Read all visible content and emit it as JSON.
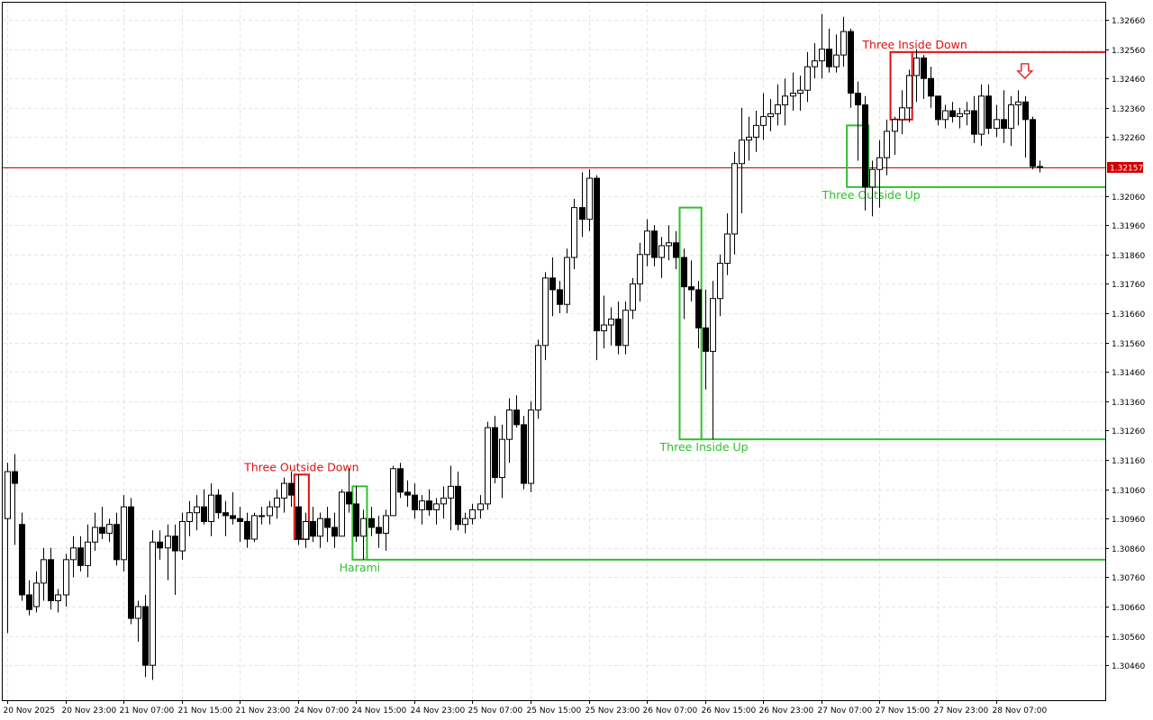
{
  "chart_data": {
    "type": "candlestick",
    "colors": {
      "background": "#ffffff",
      "grid": "#e6e6e6",
      "candle_border": "#000000",
      "bull_body": "#ffffff",
      "bear_body": "#000000",
      "bid_line": "#d00000",
      "pattern_bullish": "#2fc02f",
      "pattern_bearish": "#e01010"
    },
    "y_axis": {
      "side": "right",
      "ylim": [
        1.3039,
        1.3273
      ],
      "ticks": [
        "1.32660",
        "1.32560",
        "1.32460",
        "1.32360",
        "1.32260",
        "1.32060",
        "1.31960",
        "1.31860",
        "1.31760",
        "1.31660",
        "1.31560",
        "1.31460",
        "1.31360",
        "1.31260",
        "1.31160",
        "1.31060",
        "1.30960",
        "1.30860",
        "1.30760",
        "1.30660",
        "1.30560",
        "1.30460"
      ]
    },
    "x_axis": {
      "bar_count": 152,
      "labels": [
        {
          "bar": 0,
          "text": "20 Nov 2025"
        },
        {
          "bar": 8,
          "text": "20 Nov 23:00"
        },
        {
          "bar": 16,
          "text": "21 Nov 07:00"
        },
        {
          "bar": 24,
          "text": "21 Nov 15:00"
        },
        {
          "bar": 32,
          "text": "21 Nov 23:00"
        },
        {
          "bar": 40,
          "text": "24 Nov 07:00"
        },
        {
          "bar": 48,
          "text": "24 Nov 15:00"
        },
        {
          "bar": 56,
          "text": "24 Nov 23:00"
        },
        {
          "bar": 64,
          "text": "25 Nov 07:00"
        },
        {
          "bar": 72,
          "text": "25 Nov 15:00"
        },
        {
          "bar": 80,
          "text": "25 Nov 23:00"
        },
        {
          "bar": 88,
          "text": "26 Nov 07:00"
        },
        {
          "bar": 96,
          "text": "26 Nov 15:00"
        },
        {
          "bar": 104,
          "text": "26 Nov 23:00"
        },
        {
          "bar": 112,
          "text": "27 Nov 07:00"
        },
        {
          "bar": 120,
          "text": "27 Nov 15:00"
        },
        {
          "bar": 128,
          "text": "27 Nov 23:00"
        },
        {
          "bar": 136,
          "text": "28 Nov 07:00"
        }
      ]
    },
    "current_price": {
      "value": 1.32157,
      "label": "1.32157"
    },
    "ohlc": [
      [
        1.3096,
        1.3115,
        1.3057,
        1.3112
      ],
      [
        1.3112,
        1.3118,
        1.3087,
        1.3108
      ],
      [
        1.3094,
        1.3098,
        1.3068,
        1.307
      ],
      [
        1.307,
        1.3075,
        1.3063,
        1.3065
      ],
      [
        1.3066,
        1.3078,
        1.3064,
        1.3074
      ],
      [
        1.3074,
        1.3086,
        1.3068,
        1.3082
      ],
      [
        1.3082,
        1.3086,
        1.3065,
        1.3068
      ],
      [
        1.3068,
        1.3072,
        1.3064,
        1.307
      ],
      [
        1.307,
        1.3084,
        1.3066,
        1.3082
      ],
      [
        1.3082,
        1.309,
        1.3076,
        1.3086
      ],
      [
        1.3086,
        1.309,
        1.3078,
        1.308
      ],
      [
        1.308,
        1.3094,
        1.3076,
        1.3088
      ],
      [
        1.3088,
        1.3098,
        1.3085,
        1.3093
      ],
      [
        1.3093,
        1.31,
        1.3089,
        1.3091
      ],
      [
        1.3091,
        1.3096,
        1.3088,
        1.3094
      ],
      [
        1.3094,
        1.3098,
        1.308,
        1.3082
      ],
      [
        1.3082,
        1.3104,
        1.3078,
        1.31
      ],
      [
        1.31,
        1.3103,
        1.306,
        1.3062
      ],
      [
        1.3062,
        1.3068,
        1.3054,
        1.3066
      ],
      [
        1.3066,
        1.307,
        1.3042,
        1.3046
      ],
      [
        1.3046,
        1.3092,
        1.3041,
        1.3088
      ],
      [
        1.3088,
        1.3092,
        1.3082,
        1.3086
      ],
      [
        1.3086,
        1.3094,
        1.3075,
        1.309
      ],
      [
        1.309,
        1.3094,
        1.307,
        1.3085
      ],
      [
        1.3085,
        1.3098,
        1.3082,
        1.3095
      ],
      [
        1.3095,
        1.3102,
        1.309,
        1.3098
      ],
      [
        1.3098,
        1.3104,
        1.3092,
        1.31
      ],
      [
        1.31,
        1.3106,
        1.3094,
        1.3095
      ],
      [
        1.3095,
        1.3108,
        1.309,
        1.3104
      ],
      [
        1.3104,
        1.3106,
        1.3096,
        1.3098
      ],
      [
        1.3098,
        1.3102,
        1.309,
        1.3097
      ],
      [
        1.3097,
        1.3105,
        1.3094,
        1.3096
      ],
      [
        1.3096,
        1.31,
        1.3088,
        1.3095
      ],
      [
        1.3095,
        1.3098,
        1.3086,
        1.3089
      ],
      [
        1.3089,
        1.3098,
        1.3088,
        1.3097
      ],
      [
        1.3097,
        1.31,
        1.3094,
        1.3097
      ],
      [
        1.3097,
        1.3102,
        1.3094,
        1.31
      ],
      [
        1.31,
        1.3106,
        1.3096,
        1.3103
      ],
      [
        1.3103,
        1.311,
        1.3098,
        1.3108
      ],
      [
        1.3108,
        1.3112,
        1.31,
        1.3104
      ],
      [
        1.31,
        1.3111,
        1.3087,
        1.3089
      ],
      [
        1.3089,
        1.3098,
        1.3086,
        1.3095
      ],
      [
        1.3095,
        1.31,
        1.3088,
        1.309
      ],
      [
        1.309,
        1.3098,
        1.3086,
        1.3096
      ],
      [
        1.3096,
        1.31,
        1.3088,
        1.3093
      ],
      [
        1.3093,
        1.3098,
        1.3086,
        1.309
      ],
      [
        1.309,
        1.3106,
        1.309,
        1.3105
      ],
      [
        1.3105,
        1.3113,
        1.3098,
        1.3101
      ],
      [
        1.3101,
        1.3107,
        1.3088,
        1.309
      ],
      [
        1.309,
        1.3099,
        1.3082,
        1.3096
      ],
      [
        1.3096,
        1.31,
        1.309,
        1.3093
      ],
      [
        1.3093,
        1.3097,
        1.3086,
        1.3091
      ],
      [
        1.3091,
        1.3099,
        1.3085,
        1.3097
      ],
      [
        1.3097,
        1.3114,
        1.3097,
        1.3113
      ],
      [
        1.3113,
        1.3115,
        1.3103,
        1.3105
      ],
      [
        1.3105,
        1.3109,
        1.31,
        1.3104
      ],
      [
        1.3104,
        1.3108,
        1.3096,
        1.3099
      ],
      [
        1.3099,
        1.3104,
        1.3094,
        1.3102
      ],
      [
        1.3102,
        1.3106,
        1.3097,
        1.3099
      ],
      [
        1.3099,
        1.3103,
        1.3094,
        1.3101
      ],
      [
        1.3101,
        1.3107,
        1.3096,
        1.3103
      ],
      [
        1.3103,
        1.3114,
        1.3092,
        1.3107
      ],
      [
        1.3107,
        1.3112,
        1.3092,
        1.3094
      ],
      [
        1.3094,
        1.3098,
        1.3091,
        1.3096
      ],
      [
        1.3096,
        1.3101,
        1.3094,
        1.3099
      ],
      [
        1.3099,
        1.3104,
        1.3096,
        1.3101
      ],
      [
        1.3101,
        1.3129,
        1.3099,
        1.3127
      ],
      [
        1.3127,
        1.3131,
        1.3108,
        1.311
      ],
      [
        1.311,
        1.3128,
        1.3103,
        1.3123
      ],
      [
        1.3123,
        1.3137,
        1.3115,
        1.3133
      ],
      [
        1.3133,
        1.3138,
        1.3127,
        1.3128
      ],
      [
        1.3128,
        1.3131,
        1.3106,
        1.3108
      ],
      [
        1.3108,
        1.3136,
        1.3105,
        1.3133
      ],
      [
        1.3133,
        1.3157,
        1.313,
        1.3155
      ],
      [
        1.3155,
        1.318,
        1.315,
        1.3178
      ],
      [
        1.3178,
        1.3185,
        1.3165,
        1.3174
      ],
      [
        1.3174,
        1.3177,
        1.3166,
        1.3169
      ],
      [
        1.3169,
        1.3188,
        1.3166,
        1.3185
      ],
      [
        1.3185,
        1.3205,
        1.3181,
        1.3202
      ],
      [
        1.3202,
        1.3214,
        1.3192,
        1.3198
      ],
      [
        1.3198,
        1.3215,
        1.3194,
        1.3212
      ],
      [
        1.3212,
        1.3213,
        1.315,
        1.316
      ],
      [
        1.316,
        1.3172,
        1.3154,
        1.3162
      ],
      [
        1.3162,
        1.3168,
        1.3155,
        1.3164
      ],
      [
        1.3164,
        1.317,
        1.3152,
        1.3155
      ],
      [
        1.3155,
        1.317,
        1.3152,
        1.3167
      ],
      [
        1.3167,
        1.3178,
        1.3164,
        1.3176
      ],
      [
        1.3176,
        1.319,
        1.317,
        1.3186
      ],
      [
        1.3186,
        1.3198,
        1.3182,
        1.3194
      ],
      [
        1.3194,
        1.3196,
        1.3182,
        1.3185
      ],
      [
        1.3185,
        1.3192,
        1.3178,
        1.3189
      ],
      [
        1.3189,
        1.3196,
        1.3184,
        1.319
      ],
      [
        1.319,
        1.3194,
        1.3181,
        1.3185
      ],
      [
        1.3185,
        1.3188,
        1.3164,
        1.3175
      ],
      [
        1.3175,
        1.3184,
        1.317,
        1.3174
      ],
      [
        1.3174,
        1.3177,
        1.3154,
        1.3161
      ],
      [
        1.3161,
        1.3174,
        1.314,
        1.3153
      ],
      [
        1.3153,
        1.3177,
        1.3123,
        1.3171
      ],
      [
        1.3171,
        1.3186,
        1.3165,
        1.3183
      ],
      [
        1.3183,
        1.32,
        1.3179,
        1.3193
      ],
      [
        1.3193,
        1.3221,
        1.3186,
        1.3217
      ],
      [
        1.3217,
        1.3236,
        1.32,
        1.3225
      ],
      [
        1.3225,
        1.3233,
        1.3218,
        1.3226
      ],
      [
        1.3226,
        1.3235,
        1.3221,
        1.323
      ],
      [
        1.323,
        1.3241,
        1.3225,
        1.3233
      ],
      [
        1.3233,
        1.3239,
        1.3228,
        1.3234
      ],
      [
        1.3234,
        1.3244,
        1.323,
        1.3237
      ],
      [
        1.3237,
        1.3246,
        1.323,
        1.324
      ],
      [
        1.324,
        1.3248,
        1.3235,
        1.3241
      ],
      [
        1.3241,
        1.3247,
        1.3235,
        1.3242
      ],
      [
        1.3242,
        1.3255,
        1.3238,
        1.325
      ],
      [
        1.325,
        1.3258,
        1.3246,
        1.3252
      ],
      [
        1.3252,
        1.3268,
        1.3246,
        1.3256
      ],
      [
        1.3256,
        1.3263,
        1.3248,
        1.325
      ],
      [
        1.325,
        1.3261,
        1.3248,
        1.3254
      ],
      [
        1.3254,
        1.3267,
        1.325,
        1.3262
      ],
      [
        1.3262,
        1.3263,
        1.3236,
        1.3241
      ],
      [
        1.3241,
        1.3245,
        1.3218,
        1.3237
      ],
      [
        1.3237,
        1.324,
        1.3201,
        1.3209
      ],
      [
        1.3209,
        1.3218,
        1.3199,
        1.3215
      ],
      [
        1.3215,
        1.3225,
        1.3202,
        1.3219
      ],
      [
        1.3219,
        1.3232,
        1.3213,
        1.3228
      ],
      [
        1.3228,
        1.3233,
        1.322,
        1.3232
      ],
      [
        1.3232,
        1.3242,
        1.3227,
        1.3236
      ],
      [
        1.3236,
        1.3249,
        1.3231,
        1.3247
      ],
      [
        1.3247,
        1.3256,
        1.3238,
        1.3253
      ],
      [
        1.3253,
        1.3254,
        1.3239,
        1.3246
      ],
      [
        1.3246,
        1.325,
        1.3236,
        1.324
      ],
      [
        1.324,
        1.324,
        1.323,
        1.3232
      ],
      [
        1.3232,
        1.3237,
        1.3229,
        1.3235
      ],
      [
        1.3235,
        1.3238,
        1.3231,
        1.3233
      ],
      [
        1.3233,
        1.3236,
        1.3229,
        1.3234
      ],
      [
        1.3234,
        1.3238,
        1.323,
        1.3235
      ],
      [
        1.3235,
        1.324,
        1.3224,
        1.3227
      ],
      [
        1.3227,
        1.3244,
        1.3223,
        1.324
      ],
      [
        1.324,
        1.3244,
        1.3227,
        1.3229
      ],
      [
        1.3229,
        1.3237,
        1.3226,
        1.3232
      ],
      [
        1.3232,
        1.3242,
        1.3224,
        1.3229
      ],
      [
        1.3229,
        1.324,
        1.3223,
        1.3237
      ],
      [
        1.3237,
        1.3242,
        1.323,
        1.3238
      ],
      [
        1.3238,
        1.324,
        1.3219,
        1.3232
      ],
      [
        1.3232,
        1.3233,
        1.3215,
        1.3216
      ],
      [
        1.3216,
        1.3218,
        1.3214,
        1.3216
      ]
    ],
    "patterns": [
      {
        "name": "Three Outside Down",
        "kind": "bearish",
        "bars": [
          40,
          41
        ],
        "high": 1.3111,
        "low": 1.3089,
        "label_pos": "above"
      },
      {
        "name": "Harami",
        "kind": "bullish",
        "bars": [
          48,
          49
        ],
        "high": 1.3107,
        "low": 1.3082,
        "line_to": 1.3082,
        "label_pos": "below"
      },
      {
        "name": "Three Inside Up",
        "kind": "bullish",
        "bars": [
          93,
          95
        ],
        "high": 1.3202,
        "low": 1.3123,
        "line_to": 1.3123,
        "label_pos": "below"
      },
      {
        "name": "Three Outside Up",
        "kind": "bullish",
        "bars": [
          116,
          118
        ],
        "high": 1.323,
        "low": 1.3209,
        "line_to": 1.3209,
        "label_pos": "below"
      },
      {
        "name": "Three Inside Down",
        "kind": "bearish",
        "bars": [
          122,
          124
        ],
        "high": 1.3255,
        "low": 1.3232,
        "line_to": 1.3255,
        "label_pos": "above"
      }
    ],
    "signal_arrow": {
      "direction": "down",
      "bar": 140,
      "price": 1.3251
    }
  }
}
